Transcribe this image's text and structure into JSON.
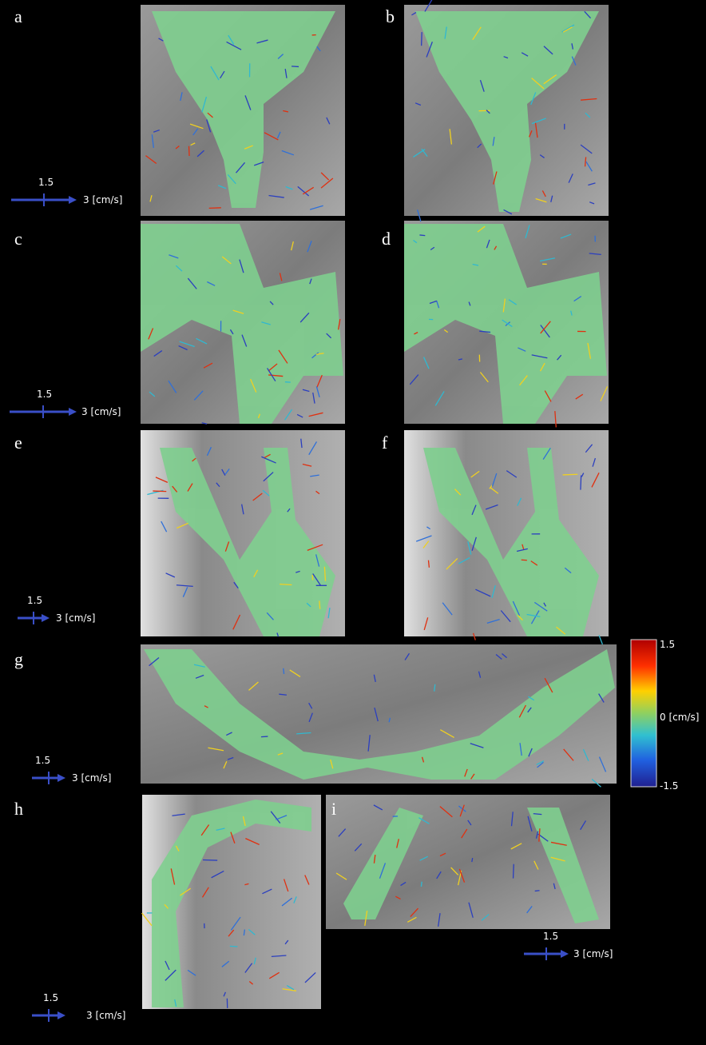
{
  "panels": [
    {
      "label": "a"
    },
    {
      "label": "b"
    },
    {
      "label": "c"
    },
    {
      "label": "d"
    },
    {
      "label": "e"
    },
    {
      "label": "f"
    },
    {
      "label": "g"
    },
    {
      "label": "h"
    },
    {
      "label": "i"
    }
  ],
  "scales": [
    {
      "magnitude": "1.5",
      "unit": "3 [cm/s]"
    },
    {
      "magnitude": "1.5",
      "unit": "3 [cm/s]"
    },
    {
      "magnitude": "1.5",
      "unit": "3 [cm/s]"
    },
    {
      "magnitude": "1.5",
      "unit": "3 [cm/s]"
    },
    {
      "magnitude": "1.5",
      "unit": "3 [cm/s]"
    },
    {
      "magnitude": "1.5",
      "unit": "3 [cm/s]"
    }
  ],
  "colorbar": {
    "max": "1.5",
    "mid": "0 [cm/s]",
    "min": "-1.5"
  }
}
